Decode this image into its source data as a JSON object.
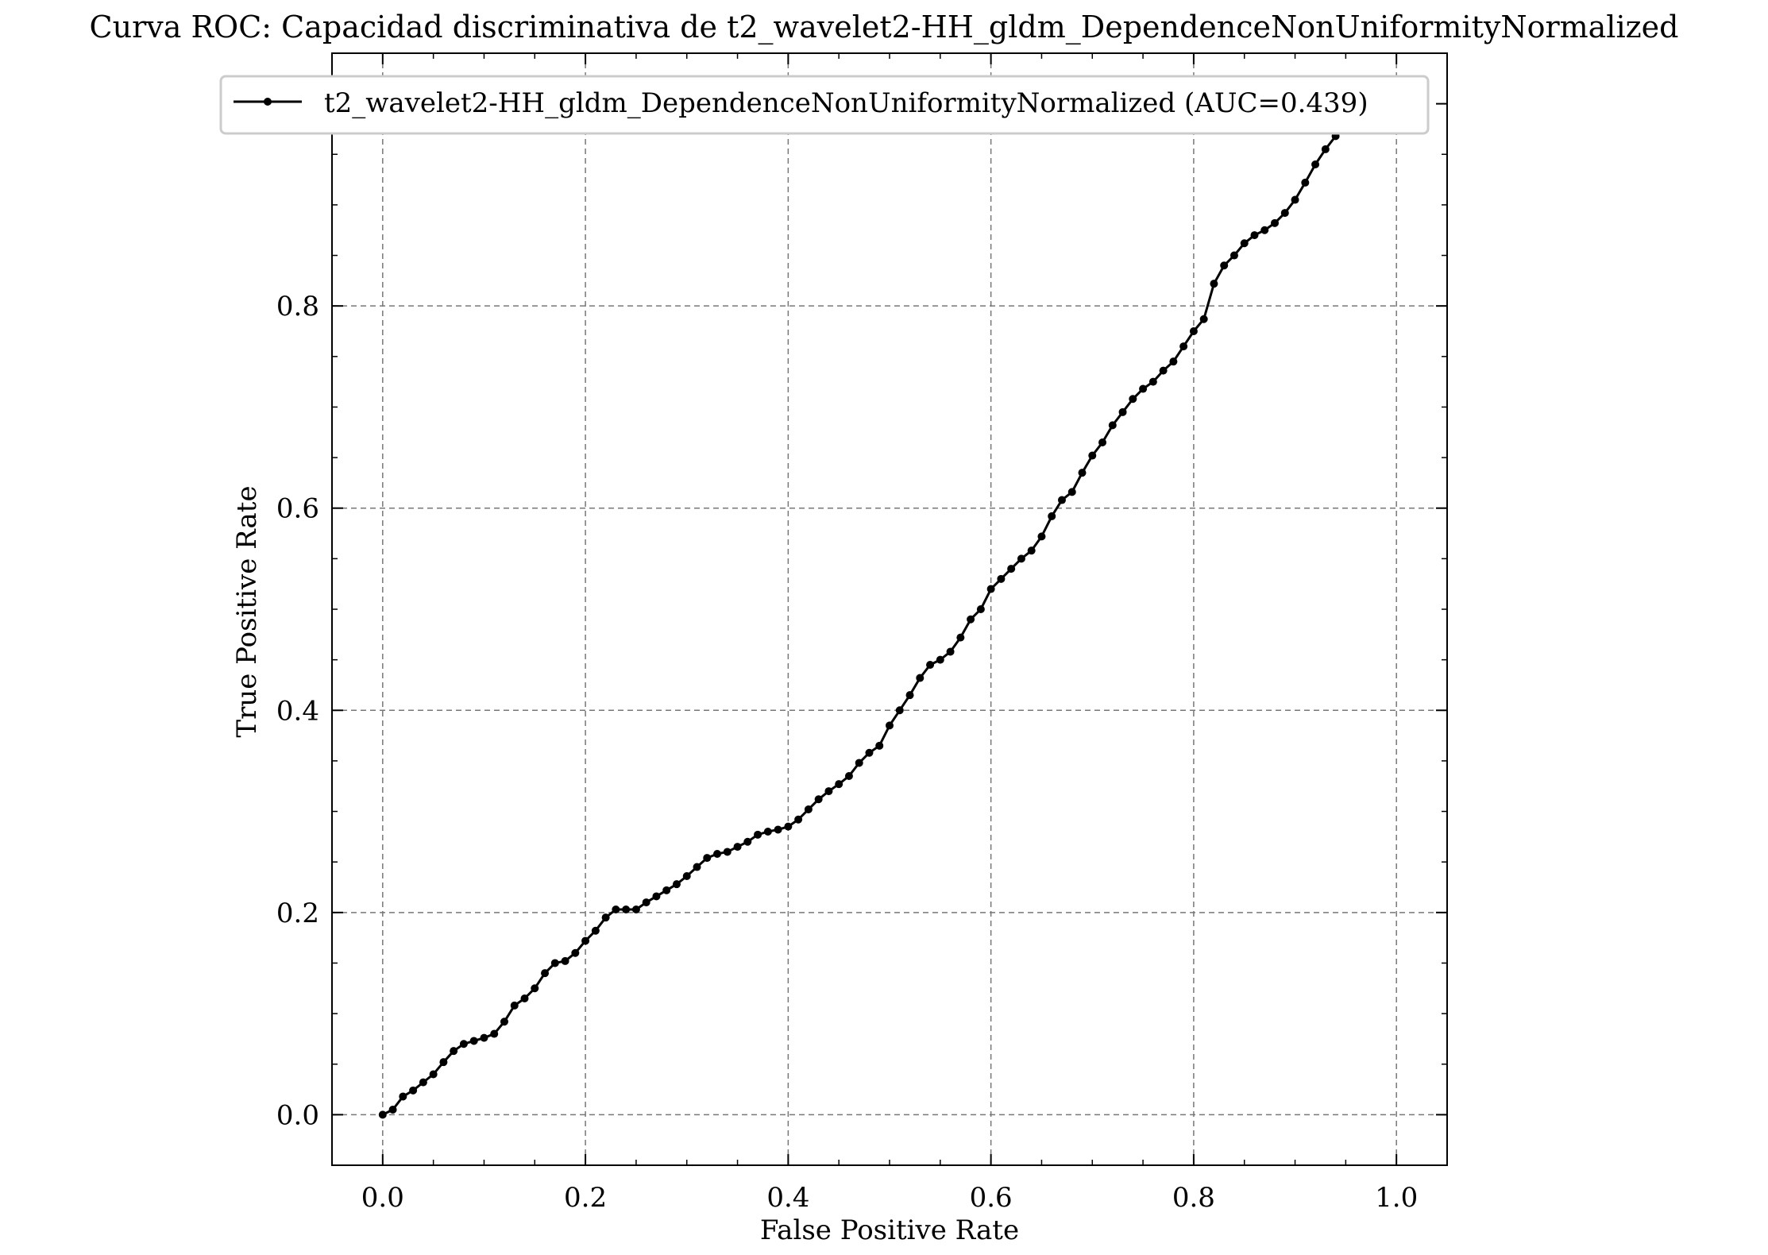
{
  "chart_data": {
    "type": "line",
    "title": "Curva ROC: Capacidad discriminativa de t2_wavelet2-HH_gldm_DependenceNonUniformityNormalized",
    "xlabel": "False Positive Rate",
    "ylabel": "True Positive Rate",
    "xlim": [
      -0.05,
      1.05
    ],
    "ylim": [
      -0.05,
      1.05
    ],
    "xticks": [
      0.0,
      0.2,
      0.4,
      0.6,
      0.8,
      1.0
    ],
    "yticks": [
      0.0,
      0.2,
      0.4,
      0.6,
      0.8
    ],
    "xtick_labels": [
      "0.0",
      "0.2",
      "0.4",
      "0.6",
      "0.8",
      "1.0"
    ],
    "ytick_labels": [
      "0.0",
      "0.2",
      "0.4",
      "0.6",
      "0.8"
    ],
    "grid": true,
    "legend_position": "top-center",
    "series": [
      {
        "name": "t2_wavelet2-HH_gldm_DependenceNonUniformityNormalized (AUC=0.439)",
        "color": "#000000",
        "marker": "circle",
        "x": [
          0.0,
          0.01,
          0.02,
          0.03,
          0.04,
          0.05,
          0.06,
          0.07,
          0.08,
          0.09,
          0.1,
          0.11,
          0.12,
          0.13,
          0.14,
          0.15,
          0.16,
          0.17,
          0.18,
          0.19,
          0.2,
          0.21,
          0.22,
          0.23,
          0.24,
          0.25,
          0.26,
          0.27,
          0.28,
          0.29,
          0.3,
          0.31,
          0.32,
          0.33,
          0.34,
          0.35,
          0.36,
          0.37,
          0.38,
          0.39,
          0.4,
          0.41,
          0.42,
          0.43,
          0.44,
          0.45,
          0.46,
          0.47,
          0.48,
          0.49,
          0.5,
          0.51,
          0.52,
          0.53,
          0.54,
          0.55,
          0.56,
          0.57,
          0.58,
          0.59,
          0.6,
          0.61,
          0.62,
          0.63,
          0.64,
          0.65,
          0.66,
          0.67,
          0.68,
          0.69,
          0.7,
          0.71,
          0.72,
          0.73,
          0.74,
          0.75,
          0.76,
          0.77,
          0.78,
          0.79,
          0.8,
          0.81,
          0.82,
          0.83,
          0.84,
          0.85,
          0.86,
          0.87,
          0.88,
          0.89,
          0.9,
          0.91,
          0.92,
          0.93,
          0.94,
          0.95,
          0.96,
          0.97,
          0.98,
          0.99,
          1.0
        ],
        "y": [
          0.0,
          0.005,
          0.018,
          0.024,
          0.032,
          0.04,
          0.052,
          0.063,
          0.07,
          0.073,
          0.076,
          0.08,
          0.092,
          0.108,
          0.115,
          0.125,
          0.14,
          0.15,
          0.152,
          0.16,
          0.172,
          0.182,
          0.195,
          0.203,
          0.203,
          0.203,
          0.21,
          0.216,
          0.222,
          0.228,
          0.236,
          0.245,
          0.254,
          0.258,
          0.26,
          0.265,
          0.27,
          0.277,
          0.28,
          0.282,
          0.285,
          0.292,
          0.302,
          0.312,
          0.32,
          0.327,
          0.335,
          0.348,
          0.358,
          0.365,
          0.385,
          0.4,
          0.415,
          0.432,
          0.445,
          0.45,
          0.458,
          0.472,
          0.49,
          0.5,
          0.52,
          0.53,
          0.54,
          0.55,
          0.558,
          0.572,
          0.592,
          0.608,
          0.616,
          0.635,
          0.652,
          0.665,
          0.682,
          0.695,
          0.708,
          0.718,
          0.725,
          0.736,
          0.745,
          0.76,
          0.775,
          0.787,
          0.822,
          0.84,
          0.85,
          0.862,
          0.87,
          0.875,
          0.882,
          0.892,
          0.905,
          0.922,
          0.94,
          0.955,
          0.968,
          0.978,
          0.988,
          0.995,
          1.0,
          1.0,
          1.0
        ]
      }
    ]
  }
}
